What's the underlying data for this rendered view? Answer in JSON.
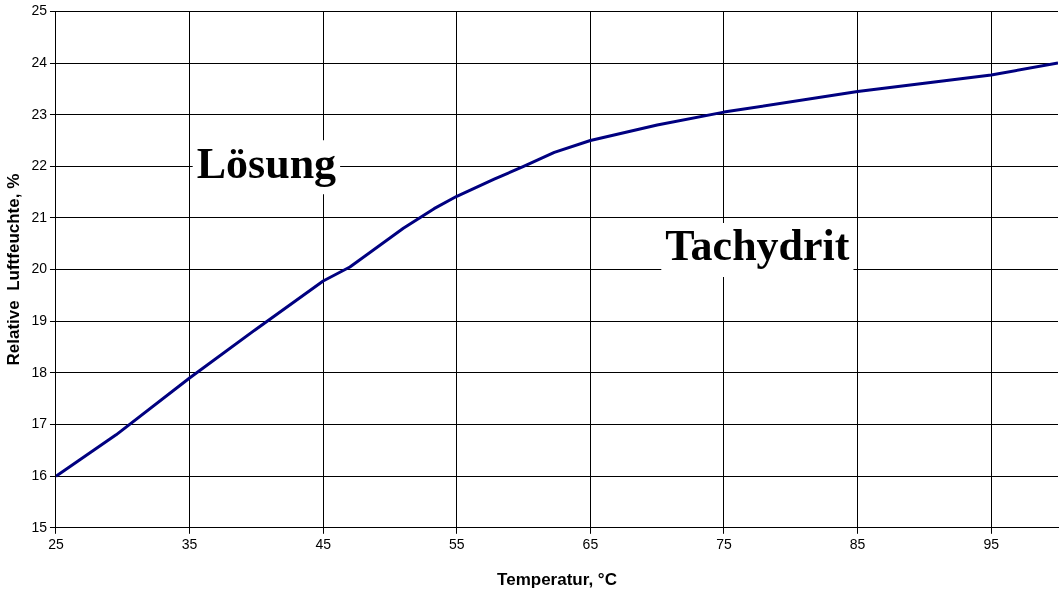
{
  "chart_data": {
    "type": "line",
    "xlabel": "Temperatur, °C",
    "ylabel": "Relative  Luftfeuchte, %",
    "series": [
      {
        "color": "#000080",
        "x": [
          25,
          29.5,
          35,
          40,
          45,
          47,
          51,
          53.3,
          55,
          57.8,
          60,
          62.3,
          65,
          70,
          75,
          85,
          95,
          100
        ],
        "values": [
          16,
          16.8,
          17.9,
          18.85,
          19.78,
          20.05,
          20.8,
          21.18,
          21.42,
          21.75,
          22.0,
          22.27,
          22.5,
          22.8,
          23.05,
          23.45,
          23.77,
          24
        ]
      }
    ],
    "xlim": [
      25,
      100
    ],
    "xticks": [
      25,
      35,
      45,
      55,
      65,
      75,
      85,
      95
    ],
    "ylim": [
      15,
      25
    ],
    "yticks": [
      15,
      16,
      17,
      18,
      19,
      20,
      21,
      22,
      23,
      24,
      25
    ],
    "grid": true,
    "legend": false,
    "marker": "none",
    "line_style": "solid",
    "annotations": [
      "Lösung",
      "Tachydrit"
    ]
  }
}
